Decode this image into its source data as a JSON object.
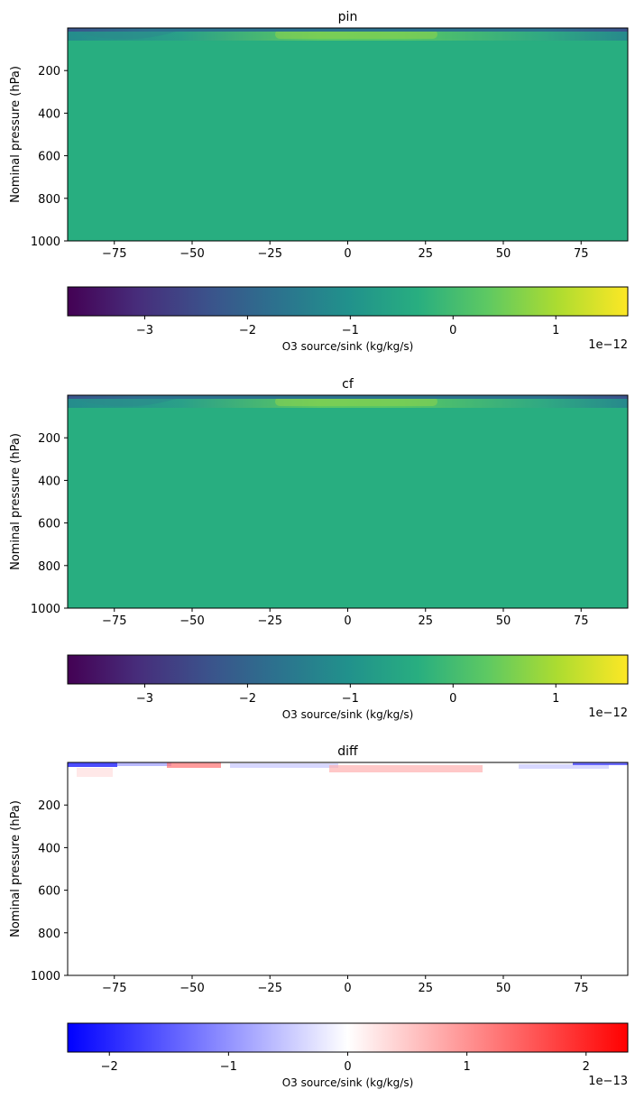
{
  "chart_data": [
    {
      "type": "heatmap",
      "title": "pin",
      "ylabel": "Nominal pressure (hPa)",
      "xlabel": "",
      "xlim": [
        -90,
        90
      ],
      "ylim": [
        1000,
        0
      ],
      "xticks": [
        "-75",
        "-50",
        "-25",
        "0",
        "25",
        "50",
        "75"
      ],
      "xtick_values": [
        -75,
        -50,
        -25,
        0,
        25,
        50,
        75
      ],
      "yticks": [
        "200",
        "400",
        "600",
        "800",
        "1000"
      ],
      "ytick_values": [
        200,
        400,
        600,
        800,
        1000
      ],
      "colormap": "viridis",
      "field_value": -0.35,
      "colorbar": {
        "label": "O3 source/sink (kg/kg/s)",
        "range": [
          -3.75,
          1.7
        ],
        "ticks": [
          "-3",
          "-2",
          "-1",
          "0",
          "1"
        ],
        "tick_values": [
          -3,
          -2,
          -1,
          0,
          1
        ],
        "offset_text": "1e−12"
      }
    },
    {
      "type": "heatmap",
      "title": "cf",
      "ylabel": "Nominal pressure (hPa)",
      "xlabel": "",
      "xlim": [
        -90,
        90
      ],
      "ylim": [
        1000,
        0
      ],
      "xticks": [
        "-75",
        "-50",
        "-25",
        "0",
        "25",
        "50",
        "75"
      ],
      "xtick_values": [
        -75,
        -50,
        -25,
        0,
        25,
        50,
        75
      ],
      "yticks": [
        "200",
        "400",
        "600",
        "800",
        "1000"
      ],
      "ytick_values": [
        200,
        400,
        600,
        800,
        1000
      ],
      "colormap": "viridis",
      "field_value": -0.35,
      "colorbar": {
        "label": "O3 source/sink (kg/kg/s)",
        "range": [
          -3.75,
          1.7
        ],
        "ticks": [
          "-3",
          "-2",
          "-1",
          "0",
          "1"
        ],
        "tick_values": [
          -3,
          -2,
          -1,
          0,
          1
        ],
        "offset_text": "1e−12"
      }
    },
    {
      "type": "heatmap",
      "title": "diff",
      "ylabel": "Nominal pressure (hPa)",
      "xlabel": "",
      "xlim": [
        -90,
        90
      ],
      "ylim": [
        1000,
        0
      ],
      "xticks": [
        "-75",
        "-50",
        "-25",
        "0",
        "25",
        "50",
        "75"
      ],
      "xtick_values": [
        -75,
        -50,
        -25,
        0,
        25,
        50,
        75
      ],
      "yticks": [
        "200",
        "400",
        "600",
        "800",
        "1000"
      ],
      "ytick_values": [
        200,
        400,
        600,
        800,
        1000
      ],
      "colormap": "bwr",
      "field_value": 0,
      "colorbar": {
        "label": "O3 source/sink (kg/kg/s)",
        "range": [
          -2.35,
          2.35
        ],
        "ticks": [
          "−2",
          "−1",
          "0",
          "1",
          "2"
        ],
        "tick_values": [
          -2,
          -1,
          0,
          1,
          2
        ],
        "offset_text": "1e−13"
      }
    }
  ]
}
